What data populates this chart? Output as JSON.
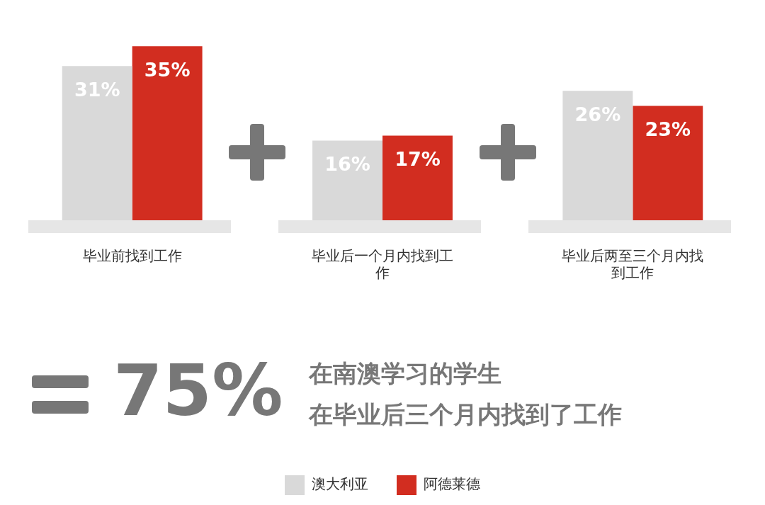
{
  "chart_data": {
    "type": "bar",
    "categories": [
      "毕业前找到工作",
      "毕业后一个月内找到工作",
      "毕业后两至三个月内找到工作"
    ],
    "series": [
      {
        "name": "澳大利亚",
        "color": "#d9d9d9",
        "values": [
          31,
          16,
          26
        ],
        "value_labels": [
          "31%",
          "16%",
          "26%"
        ]
      },
      {
        "name": "阿德莱德",
        "color": "#d22d20",
        "values": [
          35,
          17,
          23
        ],
        "value_labels": [
          "35%",
          "17%",
          "23%"
        ]
      }
    ],
    "legend": "bottom",
    "annotations": [
      "75%",
      "在南澳学习的学生",
      "在毕业后三个月内找到了工作"
    ]
  }
}
